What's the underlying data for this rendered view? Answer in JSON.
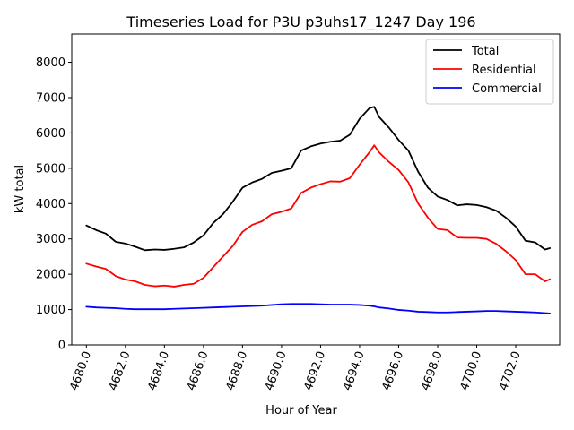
{
  "chart_data": {
    "type": "line",
    "title": "Timeseries Load for P3U p3uhs17_1247  Day 196",
    "xlabel": "Hour of Year",
    "ylabel": "kW total",
    "xlim": [
      4679.25,
      4704.25
    ],
    "ylim": [
      0,
      8800
    ],
    "xticks": [
      4680,
      4682,
      4684,
      4686,
      4688,
      4690,
      4692,
      4694,
      4696,
      4698,
      4700,
      4702
    ],
    "xtick_labels": [
      "4680.0",
      "4682.0",
      "4684.0",
      "4686.0",
      "4688.0",
      "4690.0",
      "4692.0",
      "4694.0",
      "4696.0",
      "4698.0",
      "4700.0",
      "4702.0"
    ],
    "yticks": [
      0,
      1000,
      2000,
      3000,
      4000,
      5000,
      6000,
      7000,
      8000
    ],
    "ytick_labels": [
      "0",
      "1000",
      "2000",
      "3000",
      "4000",
      "5000",
      "6000",
      "7000",
      "8000"
    ],
    "grid": false,
    "legend": "top-right",
    "x": [
      4680.0,
      4680.5,
      4681.0,
      4681.5,
      4682.0,
      4682.5,
      4683.0,
      4683.5,
      4684.0,
      4684.5,
      4685.0,
      4685.5,
      4686.0,
      4686.5,
      4687.0,
      4687.5,
      4688.0,
      4688.5,
      4689.0,
      4689.5,
      4690.0,
      4690.5,
      4691.0,
      4691.5,
      4692.0,
      4692.5,
      4693.0,
      4693.5,
      4694.0,
      4694.5,
      4694.75,
      4695.0,
      4695.5,
      4696.0,
      4696.5,
      4697.0,
      4697.5,
      4698.0,
      4698.5,
      4699.0,
      4699.5,
      4700.0,
      4700.5,
      4701.0,
      4701.5,
      4702.0,
      4702.5,
      4703.0,
      4703.5,
      4703.75
    ],
    "series": [
      {
        "name": "Total",
        "color": "#000000",
        "values": [
          3380,
          3250,
          3150,
          2920,
          2870,
          2780,
          2680,
          2700,
          2690,
          2720,
          2760,
          2900,
          3100,
          3450,
          3700,
          4050,
          4450,
          4600,
          4700,
          4870,
          4930,
          5000,
          5500,
          5620,
          5700,
          5750,
          5780,
          5950,
          6400,
          6700,
          6740,
          6450,
          6150,
          5800,
          5500,
          4900,
          4450,
          4200,
          4100,
          3950,
          3980,
          3960,
          3900,
          3800,
          3600,
          3350,
          2950,
          2900,
          2700,
          2740
        ]
      },
      {
        "name": "Residential",
        "color": "#ff0000",
        "values": [
          2300,
          2220,
          2150,
          1950,
          1850,
          1800,
          1700,
          1660,
          1680,
          1650,
          1700,
          1730,
          1900,
          2200,
          2500,
          2800,
          3200,
          3400,
          3500,
          3700,
          3770,
          3860,
          4300,
          4450,
          4550,
          4630,
          4620,
          4720,
          5100,
          5450,
          5650,
          5450,
          5180,
          4950,
          4600,
          4000,
          3600,
          3280,
          3250,
          3040,
          3030,
          3030,
          3000,
          2860,
          2650,
          2400,
          2000,
          2000,
          1800,
          1860
        ]
      },
      {
        "name": "Commercial",
        "color": "#0000ff",
        "values": [
          1080,
          1060,
          1050,
          1040,
          1020,
          1010,
          1010,
          1010,
          1010,
          1020,
          1030,
          1040,
          1050,
          1060,
          1070,
          1080,
          1090,
          1100,
          1110,
          1130,
          1150,
          1160,
          1160,
          1160,
          1150,
          1140,
          1140,
          1140,
          1130,
          1110,
          1090,
          1060,
          1030,
          990,
          970,
          940,
          930,
          920,
          920,
          930,
          940,
          950,
          960,
          960,
          950,
          940,
          930,
          920,
          900,
          890
        ]
      }
    ]
  }
}
